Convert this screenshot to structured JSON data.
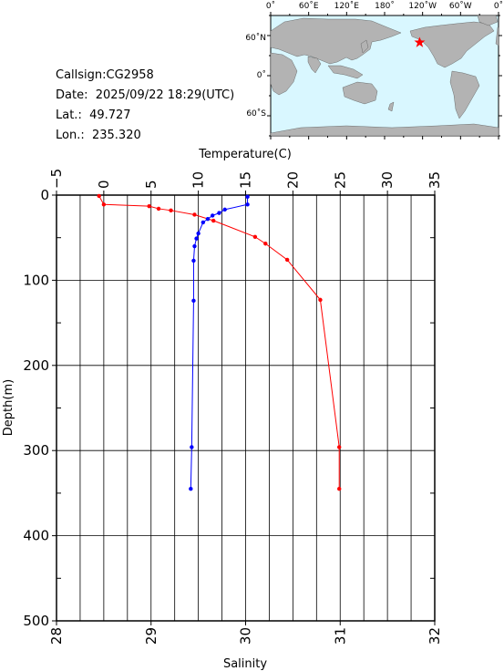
{
  "station": {
    "callsign": "Callsign:CG2958",
    "date": "Date:  2025/09/22 18:29(UTC)",
    "lat": "Lat.:  49.727",
    "lon": "Lon.:  235.320"
  },
  "map": {
    "top_labels": [
      "0˚",
      "60˚E",
      "120˚E",
      "180˚",
      "120˚W",
      "60˚W",
      "0˚"
    ],
    "left_labels": [
      "60˚N",
      "0˚",
      "60˚S"
    ],
    "ocean_color": "#d9f7ff",
    "land_color": "#b3b3b3",
    "marker_color": "#ff0000",
    "marker_icon": "star-icon",
    "station_lon": 235.32,
    "station_lat": 49.727
  },
  "chart_data": {
    "type": "line",
    "title": "",
    "ylabel": "Depth(m)",
    "ylim": [
      0,
      500
    ],
    "y_ticks": [
      "0",
      "100",
      "200",
      "300",
      "400",
      "500"
    ],
    "invert_y": true,
    "grid": true,
    "temperature_axis": {
      "label": "Temperature(C)",
      "position": "top",
      "range": [
        -5,
        35
      ],
      "ticks": [
        "−5",
        "0",
        "5",
        "10",
        "15",
        "20",
        "25",
        "30",
        "35"
      ]
    },
    "salinity_axis": {
      "label": "Salinity",
      "position": "bottom",
      "range": [
        28,
        32
      ],
      "ticks": [
        "28",
        "29",
        "30",
        "31",
        "32"
      ]
    },
    "series": [
      {
        "axis": "temperature",
        "color": "#ff0000",
        "x": [
          -0.5,
          0.0,
          4.8,
          5.8,
          7.1,
          9.6,
          11.6,
          16.0,
          17.1,
          19.4,
          22.9,
          24.9,
          24.9
        ],
        "y": [
          1,
          11,
          13,
          16,
          18,
          23,
          30,
          49,
          57,
          76,
          123,
          296,
          345
        ]
      },
      {
        "axis": "salinity",
        "color": "#0000ff",
        "x": [
          30.02,
          30.02,
          29.78,
          29.72,
          29.65,
          29.6,
          29.55,
          29.5,
          29.48,
          29.46,
          29.45,
          29.45,
          29.43,
          29.42
        ],
        "y": [
          2,
          11,
          17,
          21,
          24,
          28,
          32,
          45,
          51,
          60,
          77,
          124,
          296,
          345
        ]
      }
    ]
  }
}
